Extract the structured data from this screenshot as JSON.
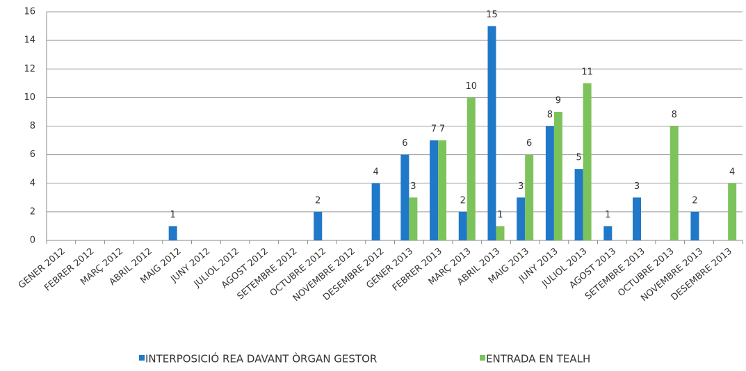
{
  "chart_data": {
    "type": "bar",
    "categories": [
      "GENER 2012",
      "FEBRER 2012",
      "MARÇ 2012",
      "ABRIL 2012",
      "MAIG 2012",
      "JUNY 2012",
      "JULIOL 2012",
      "AGOST 2012",
      "SETEMBRE 2012",
      "OCTUBRE 2012",
      "NOVEMBRE 2012",
      "DESEMBRE 2012",
      "GENER 2013",
      "FEBRER 2013",
      "MARÇ 2013",
      "ABRIL 2013",
      "MAIG 2013",
      "JUNY 2013",
      "JULIOL 2013",
      "AGOST 2013",
      "SETEMBRE 2013",
      "OCTUBRE 2013",
      "NOVEMBRE 2013",
      "DESEMBRE 2013"
    ],
    "series": [
      {
        "name": "INTERPOSICIÓ REA DAVANT ÒRGAN GESTOR",
        "color": "#1f78c8",
        "values": [
          null,
          null,
          null,
          null,
          1,
          null,
          null,
          null,
          null,
          2,
          null,
          4,
          6,
          7,
          2,
          15,
          3,
          8,
          5,
          1,
          3,
          null,
          2,
          null
        ]
      },
      {
        "name": "ENTRADA EN TEALH",
        "color": "#7dc35b",
        "values": [
          null,
          null,
          null,
          null,
          null,
          null,
          null,
          null,
          null,
          null,
          null,
          null,
          3,
          7,
          10,
          1,
          6,
          9,
          11,
          null,
          null,
          8,
          null,
          4
        ]
      }
    ],
    "ylim": [
      0,
      16
    ],
    "yticks": [
      0,
      2,
      4,
      6,
      8,
      10,
      12,
      14,
      16
    ],
    "grid": true,
    "legend": "bottom"
  }
}
